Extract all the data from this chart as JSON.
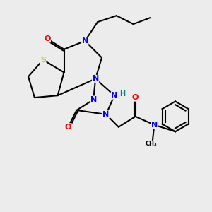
{
  "bg_color": "#ececec",
  "atom_colors": {
    "C": "#000000",
    "N": "#0000ff",
    "O": "#ff0000",
    "S": "#cccc00",
    "H": "#008080"
  },
  "bond_color": "#000000",
  "bond_width": 1.5,
  "figsize": [
    3.0,
    3.0
  ],
  "dpi": 100
}
